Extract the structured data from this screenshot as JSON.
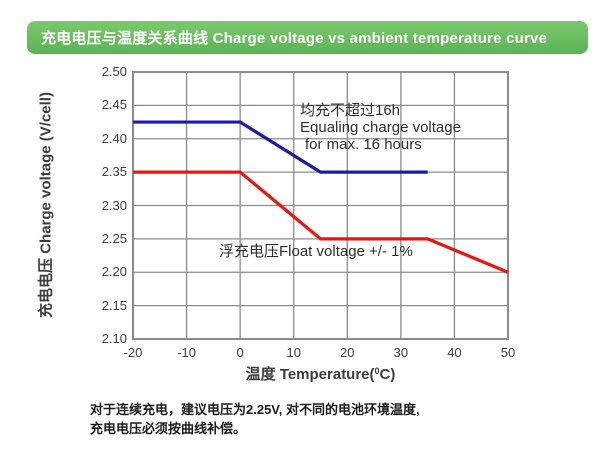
{
  "header": {
    "title": "充电电压与温度关系曲线 Charge voltage vs ambient temperature curve",
    "bg_top": "#7cc96e",
    "bg_bottom": "#5bb453",
    "text_color": "#ffffff"
  },
  "colors": {
    "background": "#ffffff",
    "grid": "#8c8c8c",
    "axis_text": "#3d3d3d",
    "equalize_line": "#1a1ca6",
    "float_line": "#ec1414"
  },
  "chart_data": {
    "type": "line",
    "title": "充电电压与温度关系曲线 Charge voltage vs ambient temperature curve",
    "xlabel": "温度 Temperature(⁰C)",
    "xlabel_prefix": "温度 Temperature(",
    "xlabel_degree": "0",
    "xlabel_suffix": "C)",
    "ylabel": "充电电压 Charge voltage (V/cell)",
    "xlim": [
      -20,
      50
    ],
    "ylim": [
      2.1,
      2.5
    ],
    "x_ticks": [
      "-20",
      "-10",
      "0",
      "10",
      "20",
      "30",
      "40",
      "50"
    ],
    "y_ticks": [
      "2.50",
      "2.45",
      "2.40",
      "2.35",
      "2.30",
      "2.25",
      "2.20",
      "2.15",
      "2.10"
    ],
    "grid": true,
    "legend_position": "none",
    "series": [
      {
        "name": "equalizing-charge-voltage",
        "label": "均充不超过16h Equaling charge voltage for max. 16 hours",
        "color": "#1a1ca6",
        "x": [
          -20,
          0,
          15,
          35
        ],
        "y": [
          2.425,
          2.425,
          2.35,
          2.35
        ]
      },
      {
        "name": "float-charge-voltage",
        "label": "浮充电压Float voltage +/- 1%",
        "color": "#ec1414",
        "x": [
          -20,
          0,
          15,
          35,
          50
        ],
        "y": [
          2.35,
          2.35,
          2.25,
          2.25,
          2.2
        ]
      }
    ],
    "annotations": {
      "equalize": {
        "line1": "均充不超过16h",
        "line2": "Equaling charge voltage",
        "line3": "for max. 16 hours"
      },
      "float_note": "浮充电压Float voltage +/- 1%"
    }
  },
  "footnote": {
    "line1": "对于连续充电，建议电压为2.25V, 对不同的电池环境温度,",
    "line2": "充电电压必须按曲线补偿。"
  }
}
